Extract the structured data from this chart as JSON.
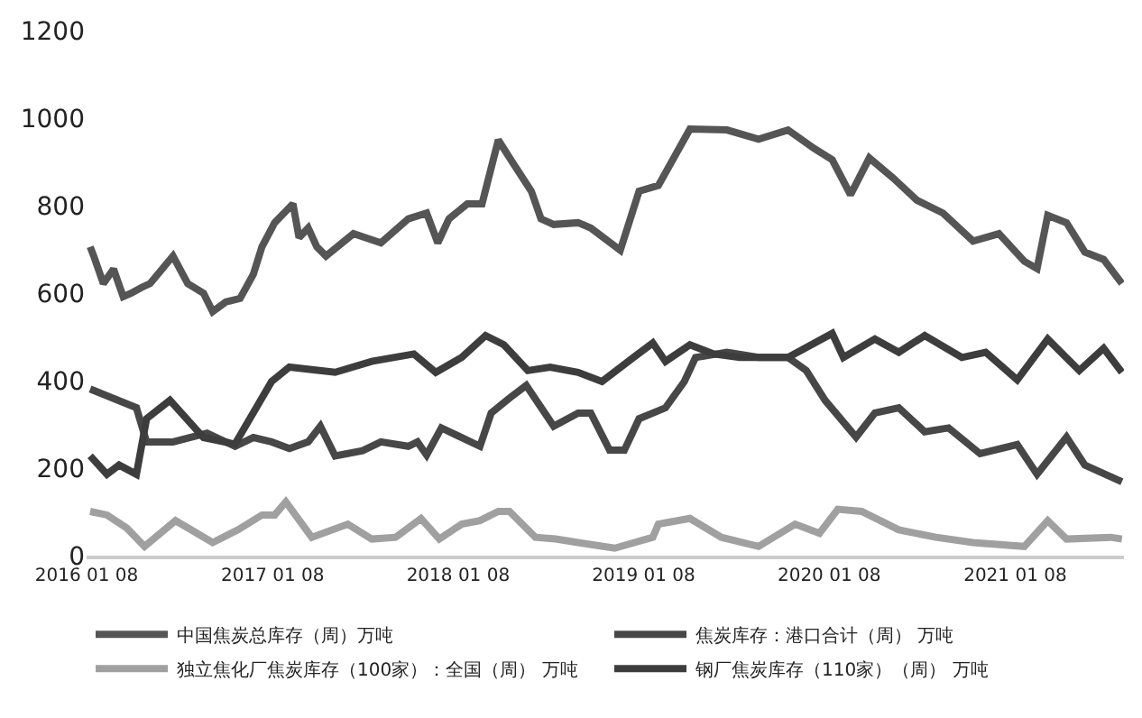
{
  "chart_data": {
    "type": "line",
    "xlim": [
      "2016-01-08",
      "2021-08-10"
    ],
    "xticks": [
      {
        "value": "2016-01-08",
        "label": "2016 01 08"
      },
      {
        "value": "2017-01-08",
        "label": "2017 01 08"
      },
      {
        "value": "2018-01-08",
        "label": "2018 01 08"
      },
      {
        "value": "2019-01-08",
        "label": "2019 01 08"
      },
      {
        "value": "2020-01-08",
        "label": "2020 01 08"
      },
      {
        "value": "2021-01-08",
        "label": "2021 01 08"
      }
    ],
    "ylim": [
      0,
      1200
    ],
    "yticks": [
      0,
      200,
      400,
      600,
      800,
      1000,
      1200
    ],
    "legend": "bottom",
    "marker": "none",
    "line_style": "solid",
    "series": [
      {
        "name": "中国焦炭总库存（周）万吨",
        "color": "#555555",
        "x": [
          "2016-01-15",
          "2016-01-22",
          "2016-02-10",
          "2016-03-01",
          "2016-03-20",
          "2016-04-05",
          "2016-04-25",
          "2016-05-12",
          "2016-06-26",
          "2016-07-25",
          "2016-08-25",
          "2016-09-12",
          "2016-10-08",
          "2016-11-05",
          "2016-12-01",
          "2016-12-18",
          "2017-01-12",
          "2017-02-17",
          "2017-03-01",
          "2017-03-19",
          "2017-04-05",
          "2017-04-23",
          "2017-06-16",
          "2017-08-09",
          "2017-10-02",
          "2017-11-07",
          "2017-11-29",
          "2017-12-21",
          "2018-01-26",
          "2018-02-24",
          "2018-03-28",
          "2018-04-26",
          "2018-06-01",
          "2018-06-20",
          "2018-07-15",
          "2018-09-01",
          "2018-09-26",
          "2018-11-23",
          "2018-12-30",
          "2019-02-06",
          "2019-04-09",
          "2019-06-21",
          "2019-08-22",
          "2019-10-19",
          "2019-12-09",
          "2020-01-14",
          "2020-02-19",
          "2020-03-27",
          "2020-05-13",
          "2020-06-29",
          "2020-08-19",
          "2020-10-17",
          "2020-12-07",
          "2021-01-26",
          "2021-02-20",
          "2021-03-13",
          "2021-04-19",
          "2021-05-25",
          "2021-07-01",
          "2021-08-06"
        ],
        "values": [
          706,
          685,
          622,
          655,
          592,
          600,
          613,
          622,
          685,
          622,
          600,
          558,
          580,
          588,
          643,
          706,
          761,
          804,
          727,
          749,
          706,
          685,
          736,
          715,
          770,
          783,
          715,
          770,
          804,
          804,
          950,
          897,
          833,
          770,
          757,
          761,
          749,
          698,
          833,
          846,
          975,
          973,
          952,
          973,
          931,
          905,
          825,
          909,
          863,
          812,
          783,
          719,
          736,
          673,
          656,
          778,
          761,
          694,
          677,
          622
        ]
      },
      {
        "name": "焦炭库存：港口合计（周） 万吨",
        "color": "#474747",
        "x": [
          "2016-01-15",
          "2016-04-15",
          "2016-05-05",
          "2016-06-26",
          "2016-09-01",
          "2016-10-26",
          "2016-12-01",
          "2017-01-06",
          "2017-02-10",
          "2017-03-19",
          "2017-04-12",
          "2017-05-11",
          "2017-07-04",
          "2017-08-09",
          "2017-10-02",
          "2017-10-20",
          "2017-11-07",
          "2017-12-06",
          "2018-02-20",
          "2018-03-14",
          "2018-04-19",
          "2018-05-22",
          "2018-07-15",
          "2018-09-01",
          "2018-09-26",
          "2018-11-02",
          "2018-12-01",
          "2018-12-30",
          "2019-02-20",
          "2019-03-29",
          "2019-04-20",
          "2019-06-21",
          "2019-08-22",
          "2019-10-19",
          "2019-11-24",
          "2019-12-31",
          "2020-03-01",
          "2020-04-07",
          "2020-05-24",
          "2020-07-14",
          "2020-08-30",
          "2020-10-31",
          "2021-01-12",
          "2021-02-20",
          "2021-04-19",
          "2021-05-25",
          "2021-08-06"
        ],
        "values": [
          381,
          338,
          260,
          260,
          280,
          250,
          270,
          260,
          245,
          260,
          296,
          228,
          240,
          260,
          250,
          260,
          230,
          292,
          250,
          326,
          360,
          389,
          296,
          326,
          326,
          241,
          241,
          313,
          338,
          398,
          453,
          465,
          453,
          453,
          423,
          355,
          271,
          326,
          338,
          283,
          292,
          233,
          254,
          186,
          271,
          207,
          169
        ]
      },
      {
        "name": "独立焦化厂焦炭库存（100家）：全国（周） 万吨",
        "color": "#a0a0a0",
        "x": [
          "2016-01-15",
          "2016-02-17",
          "2016-03-27",
          "2016-05-01",
          "2016-07-01",
          "2016-09-12",
          "2016-11-01",
          "2016-12-18",
          "2017-01-12",
          "2017-02-03",
          "2017-03-26",
          "2017-06-05",
          "2017-07-22",
          "2017-09-07",
          "2017-10-27",
          "2017-12-02",
          "2018-01-15",
          "2018-02-20",
          "2018-03-28",
          "2018-04-19",
          "2018-06-09",
          "2018-07-19",
          "2018-09-01",
          "2018-11-12",
          "2019-01-26",
          "2019-02-06",
          "2019-04-09",
          "2019-06-10",
          "2019-08-22",
          "2019-11-02",
          "2019-12-20",
          "2020-01-25",
          "2020-03-12",
          "2020-05-24",
          "2020-08-05",
          "2020-10-17",
          "2021-01-26",
          "2021-03-13",
          "2021-04-19",
          "2021-07-15",
          "2021-08-06"
        ],
        "values": [
          101,
          93,
          63,
          21,
          80,
          30,
          59,
          93,
          93,
          123,
          42,
          72,
          38,
          42,
          85,
          38,
          72,
          80,
          101,
          101,
          42,
          38,
          30,
          17,
          42,
          72,
          85,
          42,
          21,
          72,
          51,
          106,
          101,
          59,
          42,
          30,
          21,
          80,
          38,
          42,
          38
        ]
      },
      {
        "name": "钢厂焦炭库存（110家）（周） 万吨",
        "color": "#3d3d3d",
        "x": [
          "2016-01-15",
          "2016-02-17",
          "2016-03-12",
          "2016-04-15",
          "2016-05-05",
          "2016-06-20",
          "2016-08-25",
          "2016-10-26",
          "2017-01-06",
          "2017-02-10",
          "2017-05-11",
          "2017-07-22",
          "2017-10-13",
          "2017-11-25",
          "2018-01-15",
          "2018-03-03",
          "2018-04-08",
          "2018-05-25",
          "2018-07-08",
          "2018-09-01",
          "2018-10-18",
          "2018-12-19",
          "2019-01-26",
          "2019-02-20",
          "2019-04-09",
          "2019-05-26",
          "2019-07-16",
          "2019-10-19",
          "2020-01-14",
          "2020-02-05",
          "2020-04-07",
          "2020-05-24",
          "2020-07-14",
          "2020-09-25",
          "2020-11-11",
          "2021-01-12",
          "2021-03-13",
          "2021-05-14",
          "2021-07-01",
          "2021-08-06"
        ],
        "values": [
          228,
          186,
          207,
          186,
          313,
          355,
          270,
          255,
          398,
          431,
          419,
          444,
          461,
          419,
          453,
          503,
          482,
          423,
          431,
          419,
          398,
          453,
          486,
          444,
          482,
          461,
          453,
          453,
          508,
          453,
          495,
          465,
          503,
          453,
          465,
          402,
          495,
          423,
          474,
          419
        ]
      }
    ]
  }
}
